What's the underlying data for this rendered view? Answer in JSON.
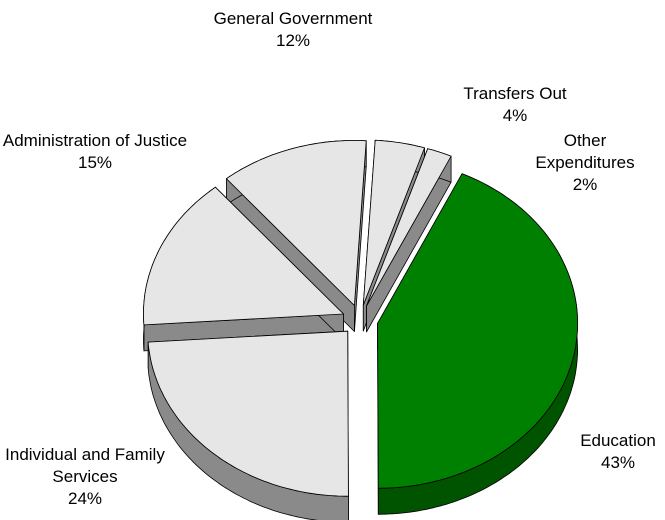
{
  "chart_data": {
    "type": "pie3d",
    "categories": [
      "Education",
      "Individual and Family Services",
      "Administration of Justice",
      "General Government",
      "Transfers Out",
      "Other Expenditures"
    ],
    "values": [
      43,
      24,
      15,
      12,
      4,
      2
    ],
    "value_labels": [
      "43%",
      "24%",
      "15%",
      "12%",
      "4%",
      "2%"
    ],
    "colors": [
      "#008000",
      "#e6e6e6",
      "#e6e6e6",
      "#e6e6e6",
      "#e6e6e6",
      "#e6e6e6"
    ],
    "side_colors": [
      "#005400",
      "#8a8a8a",
      "#8a8a8a",
      "#8a8a8a",
      "#8a8a8a",
      "#8a8a8a"
    ]
  }
}
